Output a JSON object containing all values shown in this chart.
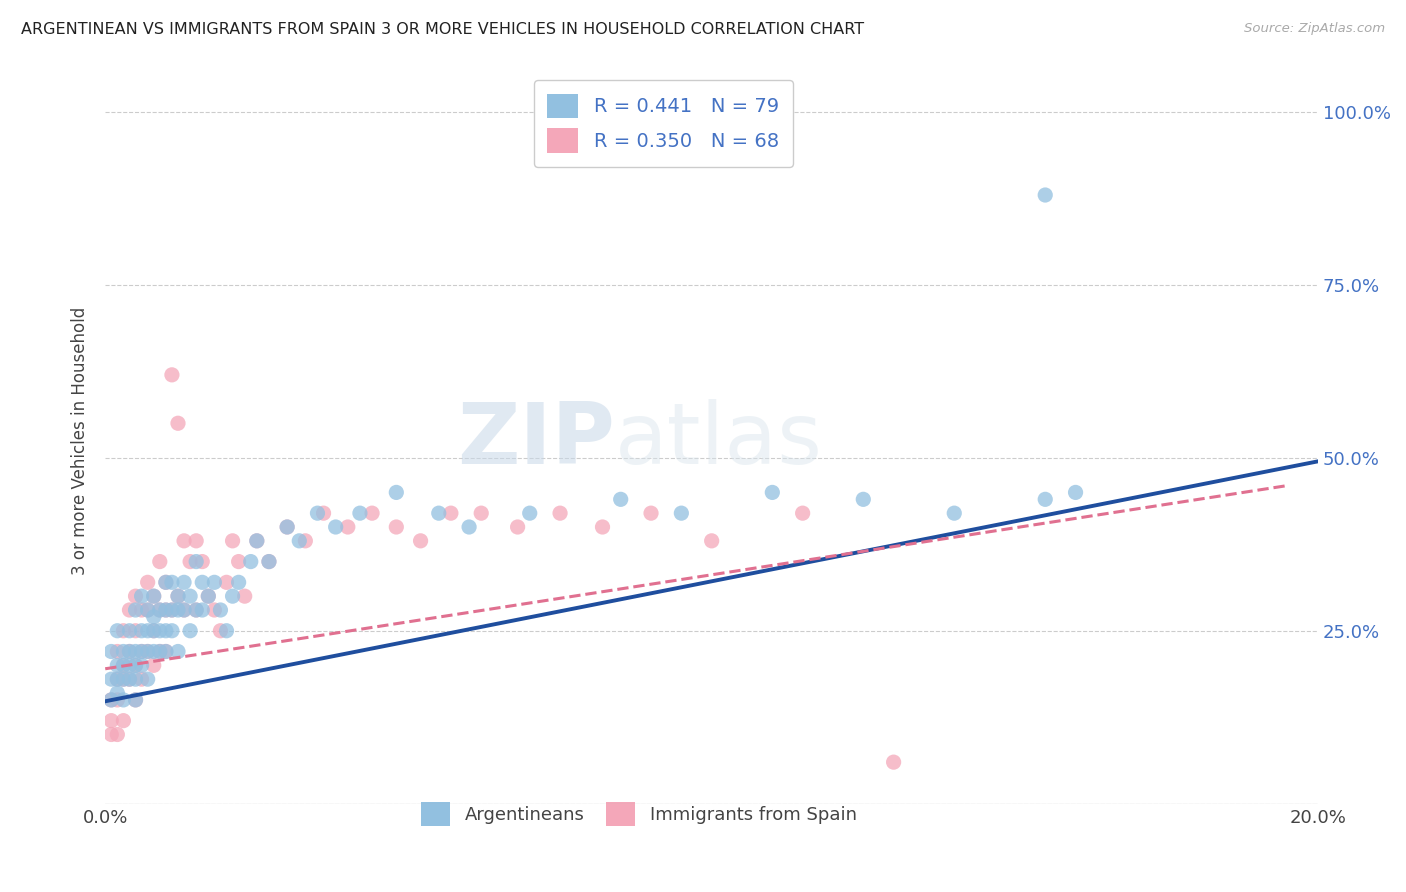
{
  "title": "ARGENTINEAN VS IMMIGRANTS FROM SPAIN 3 OR MORE VEHICLES IN HOUSEHOLD CORRELATION CHART",
  "source": "Source: ZipAtlas.com",
  "ylabel": "3 or more Vehicles in Household",
  "xmin": 0.0,
  "xmax": 0.2,
  "ymin": 0.0,
  "ymax": 1.05,
  "xticks": [
    0.0,
    0.04,
    0.08,
    0.12,
    0.16,
    0.2
  ],
  "xtick_labels": [
    "0.0%",
    "",
    "",
    "",
    "",
    "20.0%"
  ],
  "ytick_positions": [
    0.0,
    0.25,
    0.5,
    0.75,
    1.0
  ],
  "ytick_labels_right": [
    "",
    "25.0%",
    "50.0%",
    "75.0%",
    "100.0%"
  ],
  "grid_color": "#cccccc",
  "color_blue": "#92c0e0",
  "color_pink": "#f4a7b9",
  "line_blue": "#1f4e9e",
  "line_pink": "#e07090",
  "scatter_alpha": 0.75,
  "scatter_size": 120,
  "R_blue": 0.441,
  "R_pink": 0.35,
  "N_blue": 79,
  "N_pink": 68,
  "blue_line_x0": 0.0,
  "blue_line_y0": 0.148,
  "blue_line_x1": 0.2,
  "blue_line_y1": 0.495,
  "pink_line_x0": 0.0,
  "pink_line_y0": 0.195,
  "pink_line_x1": 0.195,
  "pink_line_y1": 0.46,
  "argentineans_x": [
    0.001,
    0.001,
    0.001,
    0.002,
    0.002,
    0.002,
    0.002,
    0.003,
    0.003,
    0.003,
    0.003,
    0.004,
    0.004,
    0.004,
    0.004,
    0.005,
    0.005,
    0.005,
    0.005,
    0.005,
    0.006,
    0.006,
    0.006,
    0.006,
    0.007,
    0.007,
    0.007,
    0.007,
    0.008,
    0.008,
    0.008,
    0.008,
    0.009,
    0.009,
    0.009,
    0.01,
    0.01,
    0.01,
    0.01,
    0.011,
    0.011,
    0.011,
    0.012,
    0.012,
    0.012,
    0.013,
    0.013,
    0.014,
    0.014,
    0.015,
    0.015,
    0.016,
    0.016,
    0.017,
    0.018,
    0.019,
    0.02,
    0.021,
    0.022,
    0.024,
    0.025,
    0.027,
    0.03,
    0.032,
    0.035,
    0.038,
    0.042,
    0.048,
    0.055,
    0.06,
    0.07,
    0.085,
    0.095,
    0.11,
    0.125,
    0.14,
    0.155,
    0.16,
    0.155
  ],
  "argentineans_y": [
    0.22,
    0.18,
    0.15,
    0.25,
    0.2,
    0.18,
    0.16,
    0.22,
    0.2,
    0.18,
    0.15,
    0.25,
    0.22,
    0.2,
    0.18,
    0.28,
    0.22,
    0.2,
    0.18,
    0.15,
    0.3,
    0.25,
    0.22,
    0.2,
    0.28,
    0.25,
    0.22,
    0.18,
    0.3,
    0.27,
    0.25,
    0.22,
    0.28,
    0.25,
    0.22,
    0.32,
    0.28,
    0.25,
    0.22,
    0.32,
    0.28,
    0.25,
    0.3,
    0.28,
    0.22,
    0.32,
    0.28,
    0.3,
    0.25,
    0.35,
    0.28,
    0.32,
    0.28,
    0.3,
    0.32,
    0.28,
    0.25,
    0.3,
    0.32,
    0.35,
    0.38,
    0.35,
    0.4,
    0.38,
    0.42,
    0.4,
    0.42,
    0.45,
    0.42,
    0.4,
    0.42,
    0.44,
    0.42,
    0.45,
    0.44,
    0.42,
    0.44,
    0.45,
    0.88
  ],
  "spain_x": [
    0.001,
    0.001,
    0.001,
    0.002,
    0.002,
    0.002,
    0.002,
    0.003,
    0.003,
    0.003,
    0.003,
    0.004,
    0.004,
    0.004,
    0.005,
    0.005,
    0.005,
    0.005,
    0.006,
    0.006,
    0.006,
    0.007,
    0.007,
    0.007,
    0.008,
    0.008,
    0.008,
    0.009,
    0.009,
    0.009,
    0.01,
    0.01,
    0.01,
    0.011,
    0.011,
    0.012,
    0.012,
    0.013,
    0.013,
    0.014,
    0.015,
    0.015,
    0.016,
    0.017,
    0.018,
    0.019,
    0.02,
    0.021,
    0.022,
    0.023,
    0.025,
    0.027,
    0.03,
    0.033,
    0.036,
    0.04,
    0.044,
    0.048,
    0.052,
    0.057,
    0.062,
    0.068,
    0.075,
    0.082,
    0.09,
    0.1,
    0.115,
    0.13
  ],
  "spain_y": [
    0.15,
    0.12,
    0.1,
    0.22,
    0.18,
    0.15,
    0.1,
    0.25,
    0.2,
    0.18,
    0.12,
    0.28,
    0.22,
    0.18,
    0.3,
    0.25,
    0.2,
    0.15,
    0.28,
    0.22,
    0.18,
    0.32,
    0.28,
    0.22,
    0.3,
    0.25,
    0.2,
    0.35,
    0.28,
    0.22,
    0.32,
    0.28,
    0.22,
    0.62,
    0.28,
    0.55,
    0.3,
    0.38,
    0.28,
    0.35,
    0.38,
    0.28,
    0.35,
    0.3,
    0.28,
    0.25,
    0.32,
    0.38,
    0.35,
    0.3,
    0.38,
    0.35,
    0.4,
    0.38,
    0.42,
    0.4,
    0.42,
    0.4,
    0.38,
    0.42,
    0.42,
    0.4,
    0.42,
    0.4,
    0.42,
    0.38,
    0.42,
    0.06
  ]
}
